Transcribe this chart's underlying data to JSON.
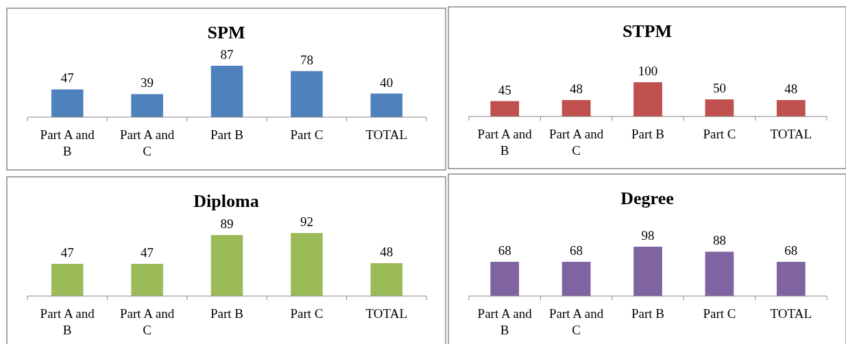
{
  "chart_data": [
    {
      "type": "bar",
      "title": "SPM",
      "categories": [
        "Part A and B",
        "Part A and C",
        "Part B",
        "Part C",
        "TOTAL"
      ],
      "values": [
        47,
        39,
        87,
        78,
        40
      ],
      "color": "#4f81bd",
      "data_labels": true
    },
    {
      "type": "bar",
      "title": "STPM",
      "categories": [
        "Part A and B",
        "Part A and C",
        "Part B",
        "Part C",
        "TOTAL"
      ],
      "values": [
        45,
        48,
        100,
        50,
        48
      ],
      "color": "#c0504d",
      "data_labels": true
    },
    {
      "type": "bar",
      "title": "Diploma",
      "categories": [
        "Part A and B",
        "Part A and C",
        "Part B",
        "Part C",
        "TOTAL"
      ],
      "values": [
        47,
        47,
        89,
        92,
        48
      ],
      "color": "#9bbb59",
      "data_labels": true
    },
    {
      "type": "bar",
      "title": "Degree",
      "categories": [
        "Part A and B",
        "Part A and C",
        "Part B",
        "Part C",
        "TOTAL"
      ],
      "values": [
        68,
        68,
        98,
        88,
        68
      ],
      "color": "#8064a2",
      "data_labels": true
    }
  ]
}
